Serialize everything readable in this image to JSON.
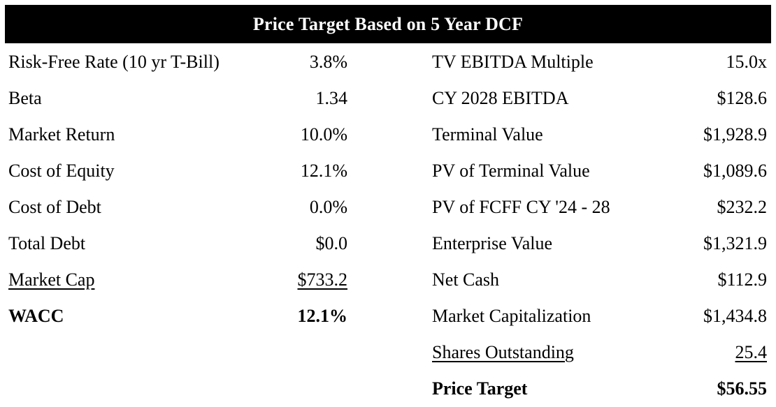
{
  "header": {
    "title": "Price Target Based on 5 Year DCF"
  },
  "colors": {
    "header_bg": "#000000",
    "header_text": "#ffffff",
    "body_text": "#000000",
    "background": "#ffffff"
  },
  "left_rows": [
    {
      "label": "Risk-Free Rate (10 yr T-Bill)",
      "value": "3.8%",
      "bold": false,
      "underline": false
    },
    {
      "label": "Beta",
      "value": "1.34",
      "bold": false,
      "underline": false
    },
    {
      "label": "Market Return",
      "value": "10.0%",
      "bold": false,
      "underline": false
    },
    {
      "label": "Cost of Equity",
      "value": "12.1%",
      "bold": false,
      "underline": false
    },
    {
      "label": "Cost of Debt",
      "value": "0.0%",
      "bold": false,
      "underline": false
    },
    {
      "label": "Total Debt",
      "value": "$0.0",
      "bold": false,
      "underline": false
    },
    {
      "label": "Market Cap",
      "value": "$733.2",
      "bold": false,
      "underline": true
    },
    {
      "label": "WACC",
      "value": "12.1%",
      "bold": true,
      "underline": false
    }
  ],
  "right_rows": [
    {
      "label": "TV EBITDA Multiple",
      "value": "15.0x",
      "bold": false,
      "underline": false
    },
    {
      "label": "CY 2028 EBITDA",
      "value": "$128.6",
      "bold": false,
      "underline": false
    },
    {
      "label": "Terminal Value",
      "value": "$1,928.9",
      "bold": false,
      "underline": false
    },
    {
      "label": "PV of Terminal Value",
      "value": "$1,089.6",
      "bold": false,
      "underline": false
    },
    {
      "label": "PV of FCFF CY '24 - 28",
      "value": "$232.2",
      "bold": false,
      "underline": false
    },
    {
      "label": "Enterprise Value",
      "value": "$1,321.9",
      "bold": false,
      "underline": false
    },
    {
      "label": "Net Cash",
      "value": "$112.9",
      "bold": false,
      "underline": false
    },
    {
      "label": "Market Capitalization",
      "value": "$1,434.8",
      "bold": false,
      "underline": false
    },
    {
      "label": "Shares Outstanding",
      "value": "25.4",
      "bold": false,
      "underline": true
    },
    {
      "label": "Price Target",
      "value": "$56.55",
      "bold": true,
      "underline": false
    }
  ]
}
